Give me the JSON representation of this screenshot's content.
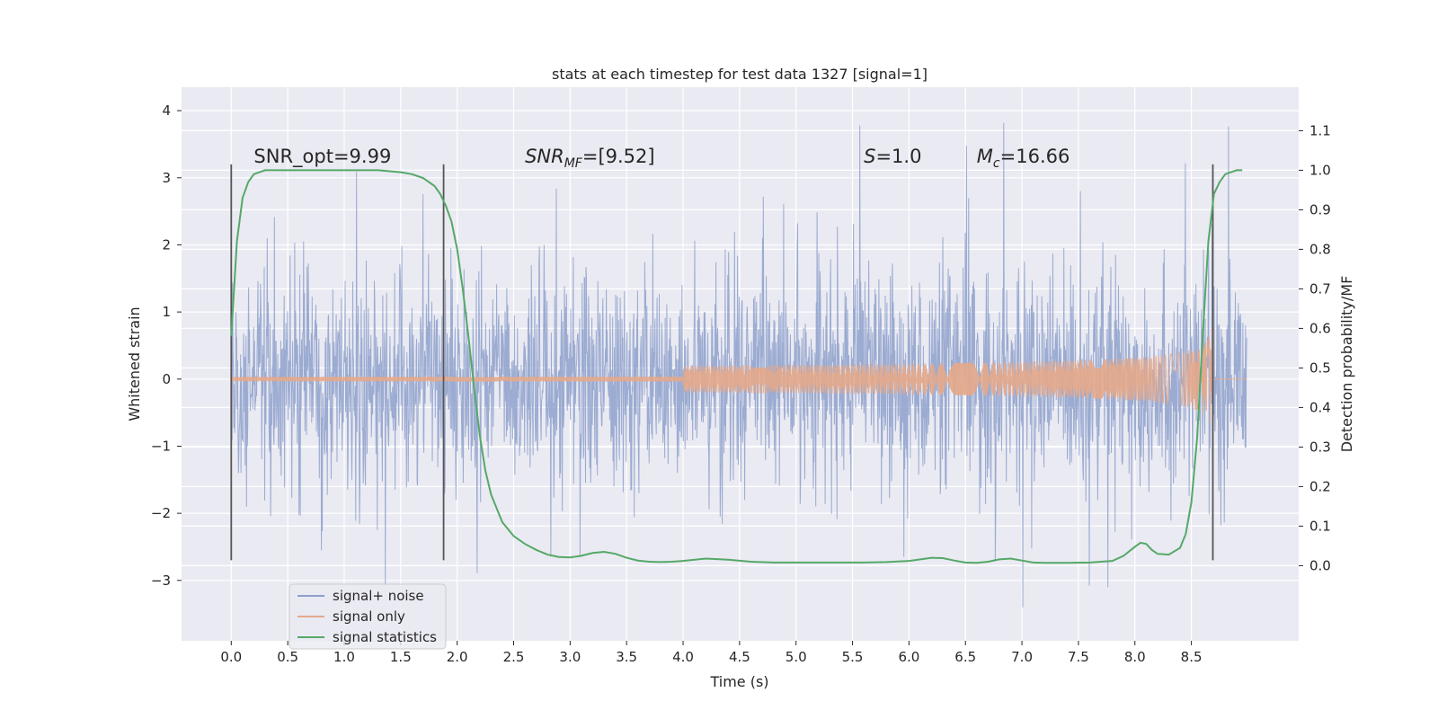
{
  "chart_data": {
    "type": "line",
    "title": "stats at each timestep for test data 1327 [signal=1]",
    "xlabel": "Time (s)",
    "ylabel": "Whitened strain",
    "y2label": "Detection probability/MF",
    "xlim": [
      -0.44,
      9.45
    ],
    "ylim": [
      -3.9,
      4.35
    ],
    "y2lim": [
      -0.19,
      1.21
    ],
    "xticks": [
      0.0,
      0.5,
      1.0,
      1.5,
      2.0,
      2.5,
      3.0,
      3.5,
      4.0,
      4.5,
      5.0,
      5.5,
      6.0,
      6.5,
      7.0,
      7.5,
      8.0,
      8.5
    ],
    "xtick_labels": [
      "0.0",
      "0.5",
      "1.0",
      "1.5",
      "2.0",
      "2.5",
      "3.0",
      "3.5",
      "4.0",
      "4.5",
      "5.0",
      "5.5",
      "6.0",
      "6.5",
      "7.0",
      "7.5",
      "8.0",
      "8.5"
    ],
    "yticks": [
      -3,
      -2,
      -1,
      0,
      1,
      2,
      3,
      4
    ],
    "ytick_labels": [
      "−3",
      "−2",
      "−1",
      "0",
      "1",
      "2",
      "3",
      "4"
    ],
    "y2ticks": [
      0.0,
      0.1,
      0.2,
      0.3,
      0.4,
      0.5,
      0.6,
      0.7,
      0.8,
      0.9,
      1.0,
      1.1
    ],
    "y2tick_labels": [
      "0.0",
      "0.1",
      "0.2",
      "0.3",
      "0.4",
      "0.5",
      "0.6",
      "0.7",
      "0.8",
      "0.9",
      "1.0",
      "1.1"
    ],
    "grid": true,
    "legend_position": "lower-left",
    "series": [
      {
        "name": "signal+ noise",
        "color": "#8da0cb",
        "description_range": [
          -3.4,
          4.0
        ],
        "x_range": [
          0.0,
          8.99
        ]
      },
      {
        "name": "signal only",
        "color": "#e5a98a",
        "chirp_amplitude_at_end": 0.85,
        "merger_time": 8.69
      },
      {
        "name": "signal statistics",
        "color": "#55a868",
        "axis": "right",
        "x": [
          0.0,
          0.05,
          0.1,
          0.15,
          0.2,
          0.3,
          0.5,
          1.0,
          1.3,
          1.5,
          1.6,
          1.7,
          1.75,
          1.8,
          1.85,
          1.9,
          1.95,
          2.0,
          2.05,
          2.1,
          2.15,
          2.2,
          2.25,
          2.3,
          2.4,
          2.5,
          2.6,
          2.7,
          2.8,
          2.9,
          3.0,
          3.1,
          3.2,
          3.3,
          3.4,
          3.5,
          3.6,
          3.7,
          3.8,
          3.9,
          4.0,
          4.2,
          4.4,
          4.6,
          4.8,
          5.0,
          5.2,
          5.4,
          5.6,
          5.8,
          6.0,
          6.1,
          6.2,
          6.3,
          6.4,
          6.5,
          6.6,
          6.7,
          6.8,
          6.9,
          7.0,
          7.1,
          7.2,
          7.4,
          7.6,
          7.8,
          7.9,
          8.0,
          8.05,
          8.1,
          8.15,
          8.2,
          8.3,
          8.4,
          8.45,
          8.5,
          8.55,
          8.6,
          8.65,
          8.7,
          8.75,
          8.8,
          8.85,
          8.9,
          8.95
        ],
        "y": [
          0.58,
          0.82,
          0.93,
          0.97,
          0.99,
          1.0,
          1.0,
          1.0,
          1.0,
          0.995,
          0.99,
          0.98,
          0.97,
          0.96,
          0.94,
          0.91,
          0.87,
          0.8,
          0.7,
          0.58,
          0.45,
          0.33,
          0.24,
          0.18,
          0.11,
          0.075,
          0.055,
          0.04,
          0.028,
          0.022,
          0.021,
          0.025,
          0.032,
          0.035,
          0.03,
          0.02,
          0.013,
          0.01,
          0.009,
          0.01,
          0.012,
          0.018,
          0.015,
          0.01,
          0.008,
          0.008,
          0.008,
          0.008,
          0.008,
          0.009,
          0.012,
          0.016,
          0.02,
          0.019,
          0.013,
          0.008,
          0.007,
          0.01,
          0.016,
          0.018,
          0.013,
          0.008,
          0.007,
          0.007,
          0.008,
          0.012,
          0.025,
          0.048,
          0.058,
          0.055,
          0.04,
          0.03,
          0.028,
          0.045,
          0.08,
          0.16,
          0.32,
          0.58,
          0.82,
          0.94,
          0.97,
          0.99,
          0.995,
          1.0,
          1.0
        ]
      }
    ],
    "vlines": [
      {
        "x": 0.0,
        "y_from": -2.7,
        "y_to": 3.2
      },
      {
        "x": 1.88,
        "y_from": -2.7,
        "y_to": 3.2
      },
      {
        "x": 8.69,
        "y_from": -2.7,
        "y_to": 3.2
      }
    ],
    "annotations": [
      {
        "text": "SNR_opt=9.99",
        "x": 0.2,
        "y": 3.2
      },
      {
        "label": "SNR",
        "sub": "MF",
        "rest": "=[9.52]",
        "x": 2.6,
        "y": 3.2
      },
      {
        "label": "S",
        "sub": "",
        "rest": "=1.0",
        "x": 5.6,
        "y": 3.2
      },
      {
        "label": "M",
        "sub": "c",
        "rest": "=16.66",
        "x": 6.6,
        "y": 3.2
      }
    ]
  },
  "legend": {
    "items": [
      "signal+ noise",
      "signal only",
      "signal statistics"
    ]
  }
}
